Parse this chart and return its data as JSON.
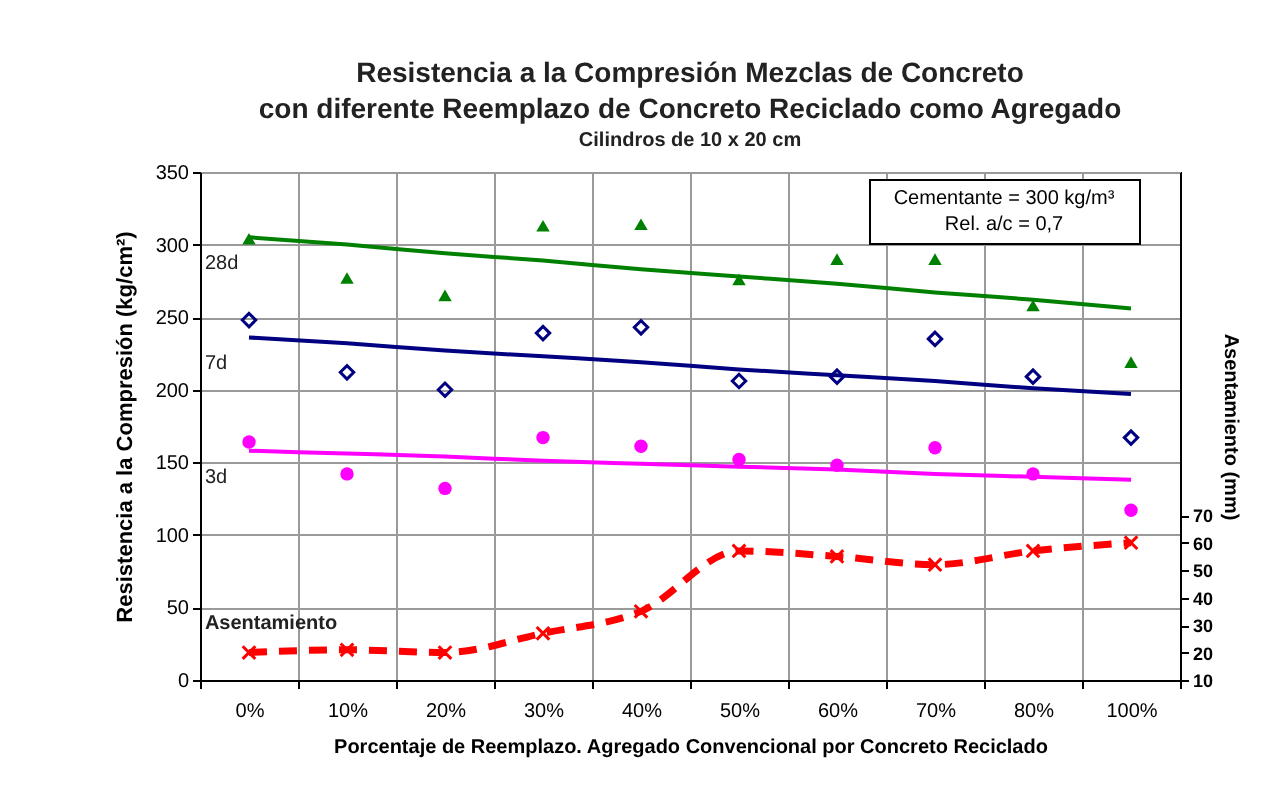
{
  "chart_data": {
    "type": "scatter",
    "title": "Resistencia a la Compresión Mezclas de Concreto\ncon diferente Reemplazo de Concreto Reciclado como Agregado",
    "subtitle": "Cilindros de 10 x 20 cm",
    "xlabel": "Porcentaje de Reemplazo.  Agregado Convencional por Concreto Reciclado",
    "ylabel": "Resistencia a la Compresión (kg/cm²)",
    "y2label": "Asentamiento (mm)",
    "annotations": [
      "Cementante = 300 kg/m³\nRel. a/c = 0,7"
    ],
    "categories": [
      "0%",
      "10%",
      "20%",
      "30%",
      "40%",
      "50%",
      "60%",
      "70%",
      "80%",
      "100%"
    ],
    "ylim": [
      0,
      350
    ],
    "yticks": [
      0,
      50,
      100,
      150,
      200,
      250,
      300,
      350
    ],
    "y2lim": [
      10,
      195
    ],
    "y2ticks": [
      10,
      20,
      30,
      40,
      50,
      60,
      70
    ],
    "grid": true,
    "series": [
      {
        "marker": "triangle",
        "color": "#008000",
        "values": [
          304,
          277,
          265,
          313,
          314,
          276,
          290,
          290,
          258,
          219
        ]
      },
      {
        "marker": "diamond",
        "color": "#000080",
        "values": [
          248,
          212,
          200,
          239,
          243,
          206,
          209,
          235,
          209,
          167
        ]
      },
      {
        "marker": "circle",
        "color": "#ff00ff",
        "values": [
          164,
          142,
          132,
          167,
          161,
          152,
          148,
          160,
          142,
          117
        ]
      },
      {
        "type": "line",
        "name": "28d",
        "marker": "none",
        "line_style": "solid",
        "color": "#008000",
        "values": [
          305,
          300,
          294,
          289,
          283,
          278,
          273,
          267,
          262,
          256
        ]
      },
      {
        "type": "line",
        "name": "7d",
        "marker": "none",
        "line_style": "solid",
        "color": "#000080",
        "values": [
          236,
          232,
          227,
          223,
          219,
          214,
          210,
          206,
          201,
          197
        ]
      },
      {
        "type": "line",
        "name": "3d",
        "marker": "none",
        "line_style": "solid",
        "color": "#ff00ff",
        "values": [
          158,
          156,
          154,
          151,
          149,
          147,
          145,
          142,
          140,
          138
        ]
      },
      {
        "type": "line",
        "name": "Asentamiento",
        "axis": "y2",
        "marker": "cross",
        "line_style": "dashed",
        "color": "#ff0000",
        "values": [
          20,
          21,
          20,
          27,
          35,
          57,
          55,
          52,
          57,
          60
        ]
      }
    ]
  }
}
